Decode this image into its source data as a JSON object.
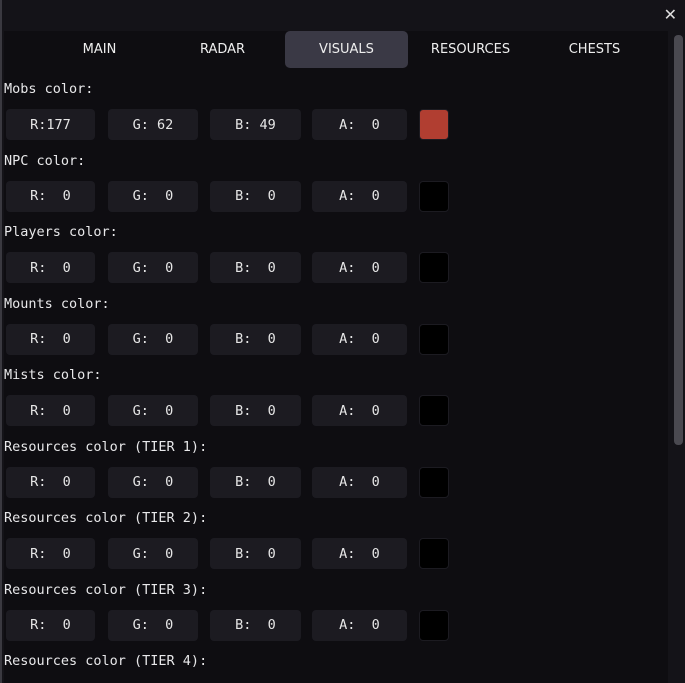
{
  "window": {
    "close_icon": "close-x"
  },
  "tabs": [
    "MAIN",
    "RADAR",
    "VISUALS",
    "RESOURCES",
    "CHESTS"
  ],
  "active_tab": "VISUALS",
  "sections": [
    {
      "label": "Mobs color:",
      "r": "R:177",
      "g": "G: 62",
      "b": "B: 49",
      "a": "A:  0",
      "swatch": "#b13e31"
    },
    {
      "label": "NPC color:",
      "r": "R:  0",
      "g": "G:  0",
      "b": "B:  0",
      "a": "A:  0",
      "swatch": "#000000"
    },
    {
      "label": "Players color:",
      "r": "R:  0",
      "g": "G:  0",
      "b": "B:  0",
      "a": "A:  0",
      "swatch": "#000000"
    },
    {
      "label": "Mounts color:",
      "r": "R:  0",
      "g": "G:  0",
      "b": "B:  0",
      "a": "A:  0",
      "swatch": "#000000"
    },
    {
      "label": "Mists color:",
      "r": "R:  0",
      "g": "G:  0",
      "b": "B:  0",
      "a": "A:  0",
      "swatch": "#000000"
    },
    {
      "label": "Resources color (TIER 1):",
      "r": "R:  0",
      "g": "G:  0",
      "b": "B:  0",
      "a": "A:  0",
      "swatch": "#000000"
    },
    {
      "label": "Resources color (TIER 2):",
      "r": "R:  0",
      "g": "G:  0",
      "b": "B:  0",
      "a": "A:  0",
      "swatch": "#000000"
    },
    {
      "label": "Resources color (TIER 3):",
      "r": "R:  0",
      "g": "G:  0",
      "b": "B:  0",
      "a": "A:  0",
      "swatch": "#000000"
    },
    {
      "label": "Resources color (TIER 4):"
    }
  ]
}
